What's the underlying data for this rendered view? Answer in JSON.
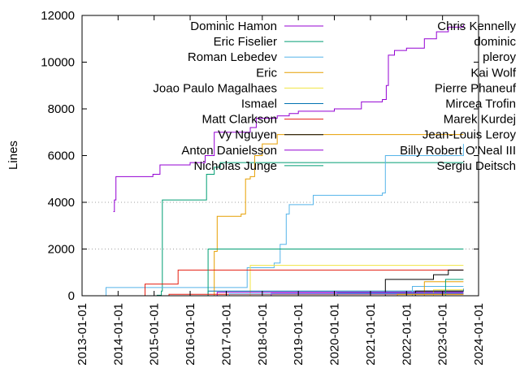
{
  "chart_data": {
    "type": "line",
    "ylabel": "Lines",
    "xlabel": "",
    "title": "",
    "ylim": [
      0,
      12000
    ],
    "xlim": [
      "2013-01-01",
      "2024-01-01"
    ],
    "y_ticks": [
      "0",
      "2000",
      "4000",
      "6000",
      "8000",
      "10000",
      "12000"
    ],
    "x_ticks": [
      "2013-01-01",
      "2014-01-01",
      "2015-01-01",
      "2016-01-01",
      "2017-01-01",
      "2018-01-01",
      "2019-01-01",
      "2020-01-01",
      "2021-01-01",
      "2022-01-01",
      "2023-01-01",
      "2024-01-01"
    ],
    "grid": "horizontal dotted at 2000, 4000",
    "legend_placement": "top, two columns",
    "series": [
      {
        "name": "Dominic Hamon",
        "color": "#9400d3",
        "points": [
          [
            "2013-11-15",
            3600
          ],
          [
            "2013-11-25",
            4100
          ],
          [
            "2013-12-10",
            5100
          ],
          [
            "2014-12-20",
            5200
          ],
          [
            "2015-03-01",
            5600
          ],
          [
            "2016-01-01",
            5700
          ],
          [
            "2016-06-01",
            6000
          ],
          [
            "2016-09-01",
            7000
          ],
          [
            "2017-09-01",
            7200
          ],
          [
            "2017-11-01",
            7600
          ],
          [
            "2018-06-01",
            7700
          ],
          [
            "2018-10-01",
            7800
          ],
          [
            "2019-01-01",
            7900
          ],
          [
            "2020-01-01",
            8000
          ],
          [
            "2020-10-01",
            8300
          ],
          [
            "2021-05-01",
            8400
          ],
          [
            "2021-06-10",
            9000
          ],
          [
            "2021-07-01",
            10300
          ],
          [
            "2021-09-01",
            10500
          ],
          [
            "2022-01-01",
            10600
          ],
          [
            "2022-07-01",
            11000
          ],
          [
            "2022-11-01",
            11300
          ],
          [
            "2023-03-01",
            11500
          ],
          [
            "2023-08-01",
            11600
          ]
        ]
      },
      {
        "name": "Eric Fiselier",
        "color": "#009e73",
        "points": [
          [
            "2014-11-01",
            0
          ],
          [
            "2015-02-01",
            20
          ],
          [
            "2015-03-15",
            200
          ],
          [
            "2015-03-25",
            4100
          ],
          [
            "2016-06-01",
            4100
          ],
          [
            "2016-06-15",
            5200
          ],
          [
            "2016-09-01",
            5500
          ],
          [
            "2016-11-01",
            5700
          ],
          [
            "2023-08-01",
            5700
          ]
        ]
      },
      {
        "name": "Roman Lebedev",
        "color": "#56b4e9",
        "points": [
          [
            "2013-08-01",
            0
          ],
          [
            "2013-09-01",
            350
          ],
          [
            "2016-06-01",
            350
          ],
          [
            "2017-08-01",
            1200
          ],
          [
            "2018-05-01",
            1400
          ],
          [
            "2018-07-01",
            2200
          ],
          [
            "2018-09-01",
            3500
          ],
          [
            "2018-10-01",
            3900
          ],
          [
            "2019-06-01",
            4300
          ],
          [
            "2021-05-01",
            4400
          ],
          [
            "2021-06-01",
            6000
          ],
          [
            "2023-08-01",
            6500
          ]
        ]
      },
      {
        "name": "Eric",
        "color": "#e69f00",
        "points": [
          [
            "2016-06-01",
            0
          ],
          [
            "2016-09-01",
            1900
          ],
          [
            "2016-10-01",
            3400
          ],
          [
            "2017-06-01",
            3500
          ],
          [
            "2017-07-15",
            5000
          ],
          [
            "2017-09-01",
            5100
          ],
          [
            "2017-10-15",
            6000
          ],
          [
            "2018-01-01",
            6500
          ],
          [
            "2018-06-01",
            6900
          ],
          [
            "2023-08-01",
            6900
          ]
        ]
      },
      {
        "name": "Joao Paulo Magalhaes",
        "color": "#f0e442",
        "points": [
          [
            "2017-08-01",
            0
          ],
          [
            "2017-09-01",
            1300
          ],
          [
            "2023-08-01",
            1300
          ]
        ]
      },
      {
        "name": "Ismael",
        "color": "#0072b2",
        "points": [
          [
            "2016-06-01",
            0
          ],
          [
            "2016-07-01",
            200
          ],
          [
            "2023-08-01",
            300
          ]
        ]
      },
      {
        "name": "Matt Clarkson",
        "color": "#e51e10",
        "points": [
          [
            "2014-09-01",
            0
          ],
          [
            "2014-10-01",
            500
          ],
          [
            "2015-09-01",
            1100
          ],
          [
            "2023-08-01",
            1100
          ]
        ]
      },
      {
        "name": "Vy Nguyen",
        "color": "#000000",
        "points": [
          [
            "2021-05-01",
            0
          ],
          [
            "2021-06-01",
            700
          ],
          [
            "2022-10-01",
            900
          ],
          [
            "2023-03-01",
            1100
          ],
          [
            "2023-08-01",
            1100
          ]
        ]
      },
      {
        "name": "Anton Danielsson",
        "color": "#9400d3",
        "points": [
          [
            "2016-09-01",
            0
          ],
          [
            "2016-10-01",
            150
          ],
          [
            "2023-08-01",
            150
          ]
        ]
      },
      {
        "name": "Nicholas Junge",
        "color": "#009e73",
        "points": [
          [
            "2016-06-01",
            0
          ],
          [
            "2016-07-01",
            2000
          ],
          [
            "2023-08-01",
            2000
          ]
        ]
      },
      {
        "name": "Chris Kennelly",
        "color": "#56b4e9",
        "points": [
          [
            "2022-01-01",
            0
          ],
          [
            "2022-03-01",
            400
          ],
          [
            "2023-08-01",
            400
          ]
        ]
      },
      {
        "name": "dominic",
        "color": "#e69f00",
        "points": [
          [
            "2022-06-01",
            0
          ],
          [
            "2022-07-01",
            600
          ],
          [
            "2023-08-01",
            600
          ]
        ]
      },
      {
        "name": "pleroy",
        "color": "#f0e442",
        "points": [
          [
            "2022-09-01",
            0
          ],
          [
            "2022-10-01",
            250
          ],
          [
            "2023-08-01",
            250
          ]
        ]
      },
      {
        "name": "Kai Wolf",
        "color": "#0072b2",
        "points": [
          [
            "2020-01-01",
            0
          ],
          [
            "2020-02-01",
            120
          ],
          [
            "2023-08-01",
            120
          ]
        ]
      },
      {
        "name": "Pierre Phaneuf",
        "color": "#e51e10",
        "points": [
          [
            "2015-05-01",
            0
          ],
          [
            "2015-06-01",
            60
          ],
          [
            "2023-08-01",
            60
          ]
        ]
      },
      {
        "name": "Mircea Trofin",
        "color": "#000000",
        "points": [
          [
            "2022-03-01",
            0
          ],
          [
            "2022-04-01",
            200
          ],
          [
            "2023-08-01",
            200
          ]
        ]
      },
      {
        "name": "Marek Kurdej",
        "color": "#9400d3",
        "points": [
          [
            "2018-03-01",
            0
          ],
          [
            "2018-04-01",
            100
          ],
          [
            "2023-08-01",
            100
          ]
        ]
      },
      {
        "name": "Jean-Louis Leroy",
        "color": "#009e73",
        "points": [
          [
            "2023-01-01",
            0
          ],
          [
            "2023-02-01",
            700
          ],
          [
            "2023-08-01",
            700
          ]
        ]
      },
      {
        "name": "Billy Robert O'Neal III",
        "color": "#56b4e9",
        "points": [
          [
            "2017-01-01",
            0
          ],
          [
            "2017-02-01",
            80
          ],
          [
            "2023-08-01",
            80
          ]
        ]
      },
      {
        "name": "Sergiu Deitsch",
        "color": "#e69f00",
        "points": [
          [
            "2021-09-01",
            0
          ],
          [
            "2021-10-01",
            60
          ],
          [
            "2023-08-01",
            60
          ]
        ]
      }
    ]
  }
}
